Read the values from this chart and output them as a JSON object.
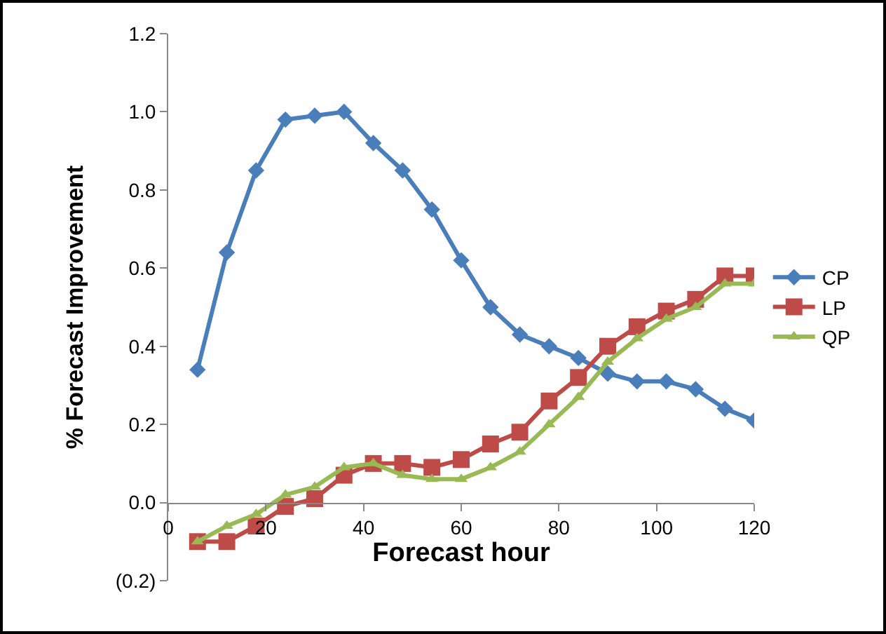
{
  "chart_data": {
    "type": "line",
    "xlabel": "Forecast hour",
    "ylabel": "% Forecast Improvement",
    "x": [
      6,
      12,
      18,
      24,
      30,
      36,
      42,
      48,
      54,
      60,
      66,
      72,
      78,
      84,
      90,
      96,
      102,
      108,
      114,
      120
    ],
    "series": [
      {
        "name": "CP",
        "color": "#4a7ebb",
        "marker": "diamond",
        "values": [
          0.34,
          0.64,
          0.85,
          0.98,
          0.99,
          1.0,
          0.92,
          0.85,
          0.75,
          0.62,
          0.5,
          0.43,
          0.4,
          0.37,
          0.33,
          0.31,
          0.31,
          0.29,
          0.24,
          0.21
        ]
      },
      {
        "name": "LP",
        "color": "#be4b48",
        "marker": "square",
        "values": [
          -0.1,
          -0.1,
          -0.06,
          -0.01,
          0.01,
          0.07,
          0.1,
          0.1,
          0.09,
          0.11,
          0.15,
          0.18,
          0.26,
          0.32,
          0.4,
          0.45,
          0.49,
          0.52,
          0.58,
          0.58
        ]
      },
      {
        "name": "QP",
        "color": "#98b954",
        "marker": "triangle",
        "values": [
          -0.1,
          -0.06,
          -0.03,
          0.02,
          0.04,
          0.09,
          0.1,
          0.07,
          0.06,
          0.06,
          0.09,
          0.13,
          0.2,
          0.27,
          0.36,
          0.42,
          0.47,
          0.5,
          0.56,
          0.56
        ]
      }
    ],
    "xlim": [
      0,
      120
    ],
    "xticks": [
      0,
      20,
      40,
      60,
      80,
      100,
      120
    ],
    "ylim": [
      -0.2,
      1.2
    ],
    "yticks": [
      {
        "value": -0.2,
        "label": "(0.2)"
      },
      {
        "value": 0,
        "label": "0.0"
      },
      {
        "value": 0.2,
        "label": "0.2"
      },
      {
        "value": 0.4,
        "label": "0.4"
      },
      {
        "value": 0.6,
        "label": "0.6"
      },
      {
        "value": 0.8,
        "label": "0.8"
      },
      {
        "value": 1.0,
        "label": "1.0"
      },
      {
        "value": 1.2,
        "label": "1.2"
      }
    ],
    "grid": false,
    "legend": "right",
    "line_style": "solid"
  }
}
